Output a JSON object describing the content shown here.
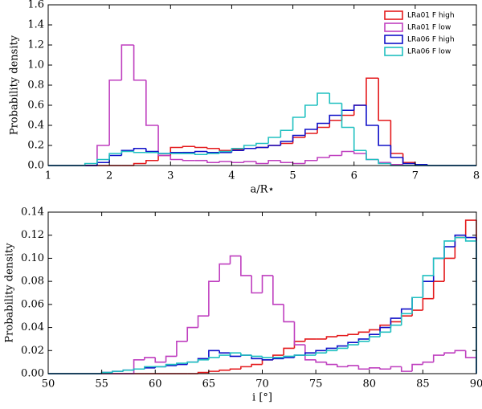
{
  "chart_data": [
    {
      "type": "histogram",
      "xlabel": "a/R⋆",
      "ylabel": "Probability density",
      "bins": [
        1.0,
        1.2,
        1.4,
        1.6,
        1.8,
        2.0,
        2.2,
        2.4,
        2.6,
        2.8,
        3.0,
        3.2,
        3.4,
        3.6,
        3.8,
        4.0,
        4.2,
        4.4,
        4.6,
        4.8,
        5.0,
        5.2,
        5.4,
        5.6,
        5.8,
        6.0,
        6.2,
        6.4,
        6.6,
        6.8,
        7.0,
        7.2,
        7.4,
        7.6,
        7.8,
        8.0
      ],
      "series": [
        {
          "name": "LRa01 F high",
          "color": "#e41a1c",
          "values": [
            0,
            0,
            0,
            0,
            0,
            0,
            0,
            0.02,
            0.05,
            0.1,
            0.18,
            0.19,
            0.18,
            0.17,
            0.15,
            0.16,
            0.17,
            0.18,
            0.2,
            0.22,
            0.28,
            0.32,
            0.38,
            0.45,
            0.5,
            0.6,
            0.87,
            0.45,
            0.12,
            0.03,
            0,
            0,
            0,
            0,
            0
          ]
        },
        {
          "name": "LRa01 F low",
          "color": "#bf3fbf",
          "values": [
            0,
            0,
            0,
            0,
            0.2,
            0.85,
            1.2,
            0.85,
            0.4,
            0.1,
            0.06,
            0.05,
            0.05,
            0.03,
            0.04,
            0.03,
            0.04,
            0.02,
            0.05,
            0.03,
            0.02,
            0.05,
            0.08,
            0.1,
            0.14,
            0.12,
            0.06,
            0.03,
            0.01,
            0,
            0,
            0,
            0,
            0,
            0
          ]
        },
        {
          "name": "LRa06 F high",
          "color": "#1010c8",
          "values": [
            0,
            0,
            0,
            0,
            0.03,
            0.1,
            0.15,
            0.17,
            0.14,
            0.12,
            0.13,
            0.13,
            0.14,
            0.13,
            0.13,
            0.15,
            0.17,
            0.18,
            0.2,
            0.24,
            0.3,
            0.36,
            0.42,
            0.5,
            0.55,
            0.6,
            0.4,
            0.2,
            0.08,
            0.02,
            0.01,
            0,
            0,
            0,
            0
          ]
        },
        {
          "name": "LRa06 F low",
          "color": "#20c0c0",
          "values": [
            0,
            0,
            0,
            0.02,
            0.06,
            0.12,
            0.14,
            0.13,
            0.13,
            0.12,
            0.12,
            0.12,
            0.11,
            0.12,
            0.14,
            0.17,
            0.2,
            0.22,
            0.28,
            0.35,
            0.48,
            0.6,
            0.72,
            0.62,
            0.38,
            0.15,
            0.06,
            0.02,
            0,
            0,
            0,
            0,
            0,
            0,
            0
          ]
        }
      ],
      "xlim": [
        1,
        8
      ],
      "xticks": [
        1,
        2,
        3,
        4,
        5,
        6,
        7,
        8
      ],
      "ylim": [
        0,
        1.6
      ],
      "yticks": [
        {
          "value": 0,
          "label": "0.0"
        },
        {
          "value": 0.2,
          "label": "0.2"
        },
        {
          "value": 0.4,
          "label": "0.4"
        },
        {
          "value": 0.6,
          "label": "0.6"
        },
        {
          "value": 0.8,
          "label": "0.8"
        },
        {
          "value": 1,
          "label": "1.0"
        },
        {
          "value": 1.2,
          "label": "1.2"
        },
        {
          "value": 1.4,
          "label": "1.4"
        },
        {
          "value": 1.6,
          "label": "1.6"
        }
      ],
      "legend": "upper right"
    },
    {
      "type": "histogram",
      "xlabel": "i [°]",
      "ylabel": "Probability density",
      "bins": [
        50,
        51,
        52,
        53,
        54,
        55,
        56,
        57,
        58,
        59,
        60,
        61,
        62,
        63,
        64,
        65,
        66,
        67,
        68,
        69,
        70,
        71,
        72,
        73,
        74,
        75,
        76,
        77,
        78,
        79,
        80,
        81,
        82,
        83,
        84,
        85,
        86,
        87,
        88,
        89,
        90
      ],
      "series": [
        {
          "name": "LRa01 F high",
          "color": "#e41a1c",
          "values": [
            0,
            0,
            0,
            0,
            0,
            0,
            0,
            0,
            0,
            0,
            0,
            0,
            0,
            0,
            0.001,
            0.002,
            0.003,
            0.004,
            0.006,
            0.008,
            0.012,
            0.016,
            0.022,
            0.028,
            0.03,
            0.03,
            0.032,
            0.033,
            0.034,
            0.036,
            0.038,
            0.042,
            0.045,
            0.05,
            0.055,
            0.065,
            0.08,
            0.1,
            0.118,
            0.133
          ]
        },
        {
          "name": "LRa01 F low",
          "color": "#bf3fbf",
          "values": [
            0,
            0,
            0,
            0,
            0,
            0,
            0,
            0,
            0.012,
            0.014,
            0.01,
            0.015,
            0.028,
            0.04,
            0.05,
            0.08,
            0.095,
            0.102,
            0.085,
            0.07,
            0.085,
            0.06,
            0.045,
            0.025,
            0.012,
            0.01,
            0.008,
            0.006,
            0.007,
            0.004,
            0.005,
            0.004,
            0.006,
            0.002,
            0.008,
            0.01,
            0.016,
            0.018,
            0.02,
            0.014
          ]
        },
        {
          "name": "LRa06 F high",
          "color": "#1010c8",
          "values": [
            0,
            0,
            0,
            0,
            0,
            0.001,
            0.002,
            0.003,
            0.004,
            0.005,
            0.006,
            0.007,
            0.008,
            0.01,
            0.013,
            0.02,
            0.018,
            0.015,
            0.016,
            0.013,
            0.012,
            0.013,
            0.014,
            0.016,
            0.018,
            0.02,
            0.022,
            0.024,
            0.027,
            0.03,
            0.034,
            0.04,
            0.048,
            0.056,
            0.066,
            0.08,
            0.1,
            0.11,
            0.12,
            0.118
          ]
        },
        {
          "name": "LRa06 F low",
          "color": "#20c0c0",
          "values": [
            0,
            0,
            0,
            0,
            0,
            0.001,
            0.002,
            0.003,
            0.004,
            0.006,
            0.006,
            0.008,
            0.009,
            0.01,
            0.012,
            0.014,
            0.016,
            0.018,
            0.016,
            0.015,
            0.014,
            0.014,
            0.015,
            0.016,
            0.016,
            0.018,
            0.02,
            0.022,
            0.025,
            0.028,
            0.032,
            0.036,
            0.042,
            0.052,
            0.066,
            0.085,
            0.1,
            0.115,
            0.118,
            0.115
          ]
        }
      ],
      "xlim": [
        50,
        90
      ],
      "xticks": [
        50,
        55,
        60,
        65,
        70,
        75,
        80,
        85,
        90
      ],
      "ylim": [
        0,
        0.14
      ],
      "yticks": [
        {
          "value": 0,
          "label": "0.00"
        },
        {
          "value": 0.02,
          "label": "0.02"
        },
        {
          "value": 0.04,
          "label": "0.04"
        },
        {
          "value": 0.06,
          "label": "0.06"
        },
        {
          "value": 0.08,
          "label": "0.08"
        },
        {
          "value": 0.1,
          "label": "0.10"
        },
        {
          "value": 0.12,
          "label": "0.12"
        },
        {
          "value": 0.14,
          "label": "0.14"
        }
      ]
    }
  ]
}
